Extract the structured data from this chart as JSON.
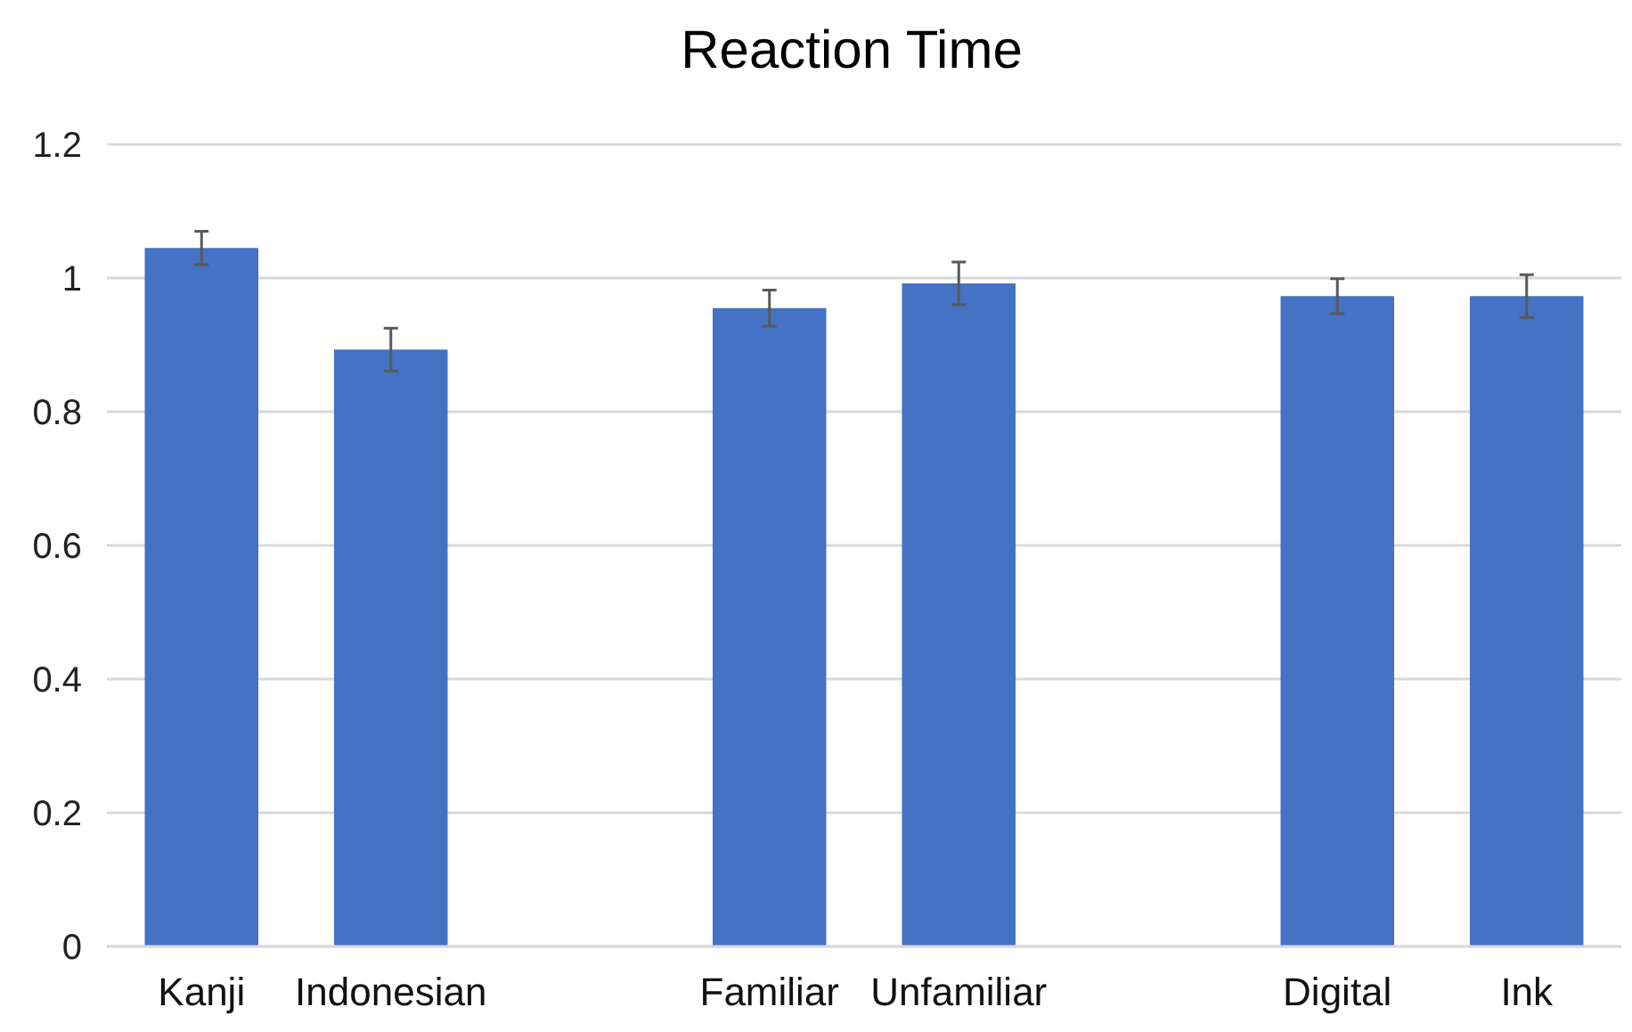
{
  "chart_data": {
    "type": "bar",
    "title": "Reaction Time",
    "categories": [
      "Kanji",
      "Indonesian",
      null,
      "Familiar",
      "Unfamiliar",
      null,
      "Digital",
      "Ink"
    ],
    "values": [
      1.045,
      0.893,
      null,
      0.955,
      0.992,
      null,
      0.973,
      0.973
    ],
    "errors": [
      0.025,
      0.032,
      null,
      0.027,
      0.032,
      null,
      0.026,
      0.032
    ],
    "color": "#4472c4",
    "ylim": [
      0,
      1.2
    ],
    "yticks": [
      0,
      0.2,
      0.4,
      0.6,
      0.8,
      1,
      1.2
    ],
    "grid": "y"
  }
}
